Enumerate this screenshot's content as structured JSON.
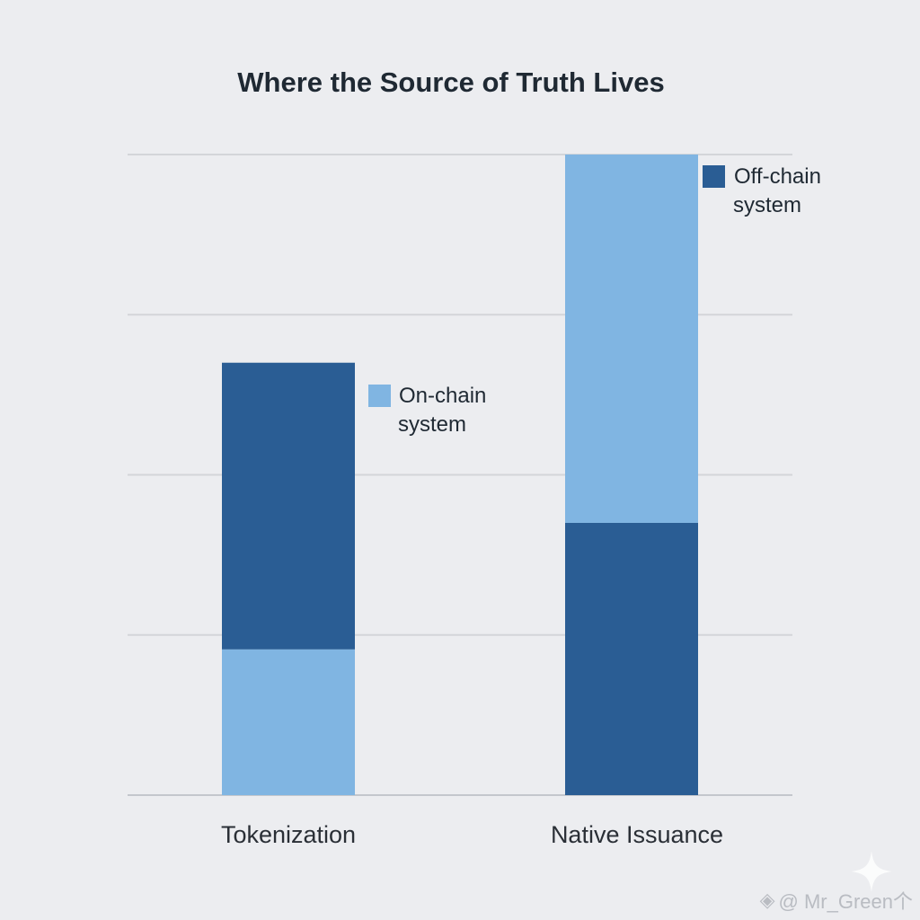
{
  "chart_data": {
    "type": "bar",
    "stacked": true,
    "title": "Where the Source of Truth Lives",
    "categories": [
      "Tokenization",
      "Native Issuance"
    ],
    "series": [
      {
        "name": "On-chain system",
        "color": "#80b5e2",
        "values": [
          0.91,
          2.3
        ]
      },
      {
        "name": "Off-chain system",
        "color": "#2a5d94",
        "values": [
          1.79,
          1.7
        ]
      }
    ],
    "stack_order": [
      [
        "On-chain system",
        "Off-chain system"
      ],
      [
        "Off-chain system",
        "On-chain system"
      ]
    ],
    "xlabel": "",
    "ylabel": "",
    "ylim": [
      0,
      4
    ],
    "grid": true,
    "legend": "inline-beside-bars",
    "legend_labels": {
      "on_chain": [
        "On-chain",
        "system"
      ],
      "off_chain": [
        "Off-chain",
        "system"
      ]
    }
  },
  "watermark": {
    "text": "@ Mr_Green个"
  }
}
